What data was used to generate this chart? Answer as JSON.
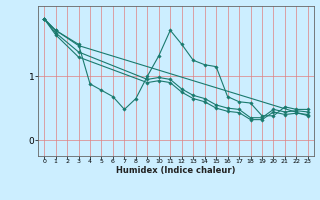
{
  "xlabel": "Humidex (Indice chaleur)",
  "bg_color": "#cceeff",
  "grid_color_v": "#e08080",
  "grid_color_h": "#e08080",
  "line_color": "#1a7a6e",
  "x_ticks": [
    0,
    1,
    2,
    3,
    4,
    5,
    6,
    7,
    8,
    9,
    10,
    11,
    12,
    13,
    14,
    15,
    16,
    17,
    18,
    19,
    20,
    21,
    22,
    23
  ],
  "y_ticks": [
    0,
    1
  ],
  "xlim": [
    -0.5,
    23.5
  ],
  "ylim": [
    -0.25,
    2.1
  ],
  "lines": [
    {
      "x": [
        0,
        1,
        3,
        4,
        5,
        6,
        7,
        8,
        9,
        10,
        11,
        12,
        13,
        14,
        15,
        16,
        17,
        18,
        19,
        20,
        21,
        22,
        23
      ],
      "y": [
        1.9,
        1.72,
        1.5,
        0.88,
        0.78,
        0.68,
        0.48,
        0.65,
        1.0,
        1.32,
        1.72,
        1.5,
        1.25,
        1.18,
        1.15,
        0.68,
        0.6,
        0.58,
        0.38,
        0.38,
        0.52,
        0.48,
        0.48
      ]
    },
    {
      "x": [
        0,
        1,
        3,
        23
      ],
      "y": [
        1.9,
        1.72,
        1.48,
        0.38
      ]
    },
    {
      "x": [
        0,
        1,
        3,
        9,
        10,
        11,
        12,
        13,
        14,
        15,
        16,
        17,
        18,
        19,
        20,
        21,
        22,
        23
      ],
      "y": [
        1.9,
        1.68,
        1.38,
        0.95,
        0.98,
        0.95,
        0.8,
        0.7,
        0.65,
        0.55,
        0.5,
        0.48,
        0.35,
        0.35,
        0.48,
        0.44,
        0.46,
        0.44
      ]
    },
    {
      "x": [
        0,
        1,
        3,
        9,
        10,
        11,
        12,
        13,
        14,
        15,
        16,
        17,
        18,
        19,
        20,
        21,
        22,
        23
      ],
      "y": [
        1.9,
        1.65,
        1.3,
        0.9,
        0.93,
        0.9,
        0.75,
        0.65,
        0.6,
        0.5,
        0.45,
        0.43,
        0.32,
        0.32,
        0.44,
        0.4,
        0.42,
        0.4
      ]
    }
  ]
}
